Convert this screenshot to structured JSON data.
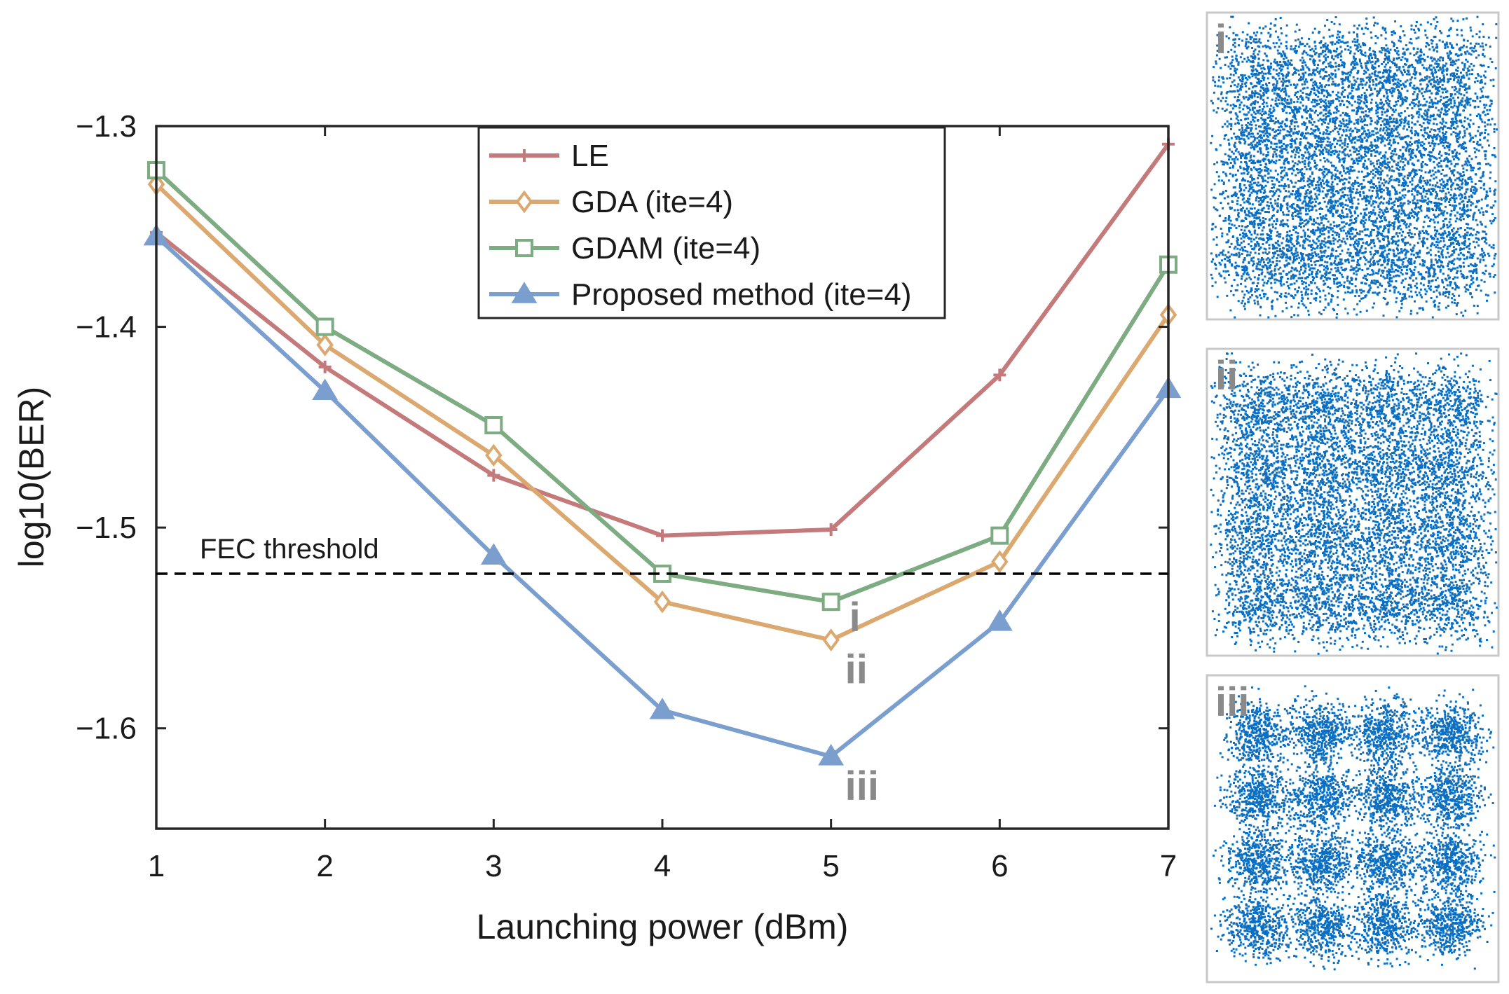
{
  "chart_data": {
    "type": "line",
    "title": "",
    "xlabel": "Launching power (dBm)",
    "ylabel": "log10(BER)",
    "x": [
      1,
      2,
      3,
      4,
      5,
      6,
      7
    ],
    "xticks": [
      "1",
      "2",
      "3",
      "4",
      "5",
      "6",
      "7"
    ],
    "yticks": [
      "−1.3",
      "−1.4",
      "−1.5",
      "−1.6"
    ],
    "ytick_values": [
      -1.3,
      -1.4,
      -1.5,
      -1.6
    ],
    "xlim": [
      1,
      7
    ],
    "ylim": [
      -1.65,
      -1.3
    ],
    "grid": false,
    "legend_position": "top-center",
    "series": [
      {
        "name": "LE",
        "marker": "plus",
        "color": "#c47a7a",
        "values": [
          -1.353,
          -1.42,
          -1.474,
          -1.504,
          -1.501,
          -1.424,
          -1.309
        ]
      },
      {
        "name": "GDA (ite=4)",
        "marker": "diamond",
        "color": "#dba96f",
        "values": [
          -1.329,
          -1.409,
          -1.464,
          -1.537,
          -1.556,
          -1.517,
          -1.394
        ]
      },
      {
        "name": "GDAM (ite=4)",
        "marker": "square",
        "color": "#7dab82",
        "values": [
          -1.322,
          -1.4,
          -1.449,
          -1.523,
          -1.537,
          -1.504,
          -1.369
        ]
      },
      {
        "name": "Proposed method (ite=4)",
        "marker": "triangle",
        "color": "#7a9fcf",
        "values": [
          -1.355,
          -1.432,
          -1.514,
          -1.591,
          -1.614,
          -1.547,
          -1.431
        ]
      }
    ],
    "threshold": {
      "label": "FEC threshold",
      "value": -1.523
    },
    "point_annotations": [
      {
        "text": "i",
        "x": 5,
        "series": "GDAM (ite=4)"
      },
      {
        "text": "ii",
        "x": 5,
        "series": "GDA (ite=4)"
      },
      {
        "text": "iii",
        "x": 5,
        "series": "Proposed method (ite=4)"
      }
    ]
  },
  "insets": [
    {
      "label": "i",
      "noise": 0.62,
      "dot_color": "#0a6fc2"
    },
    {
      "label": "ii",
      "noise": 0.55,
      "dot_color": "#0a6fc2"
    },
    {
      "label": "iii",
      "noise": 0.38,
      "dot_color": "#0a6fc2"
    }
  ]
}
